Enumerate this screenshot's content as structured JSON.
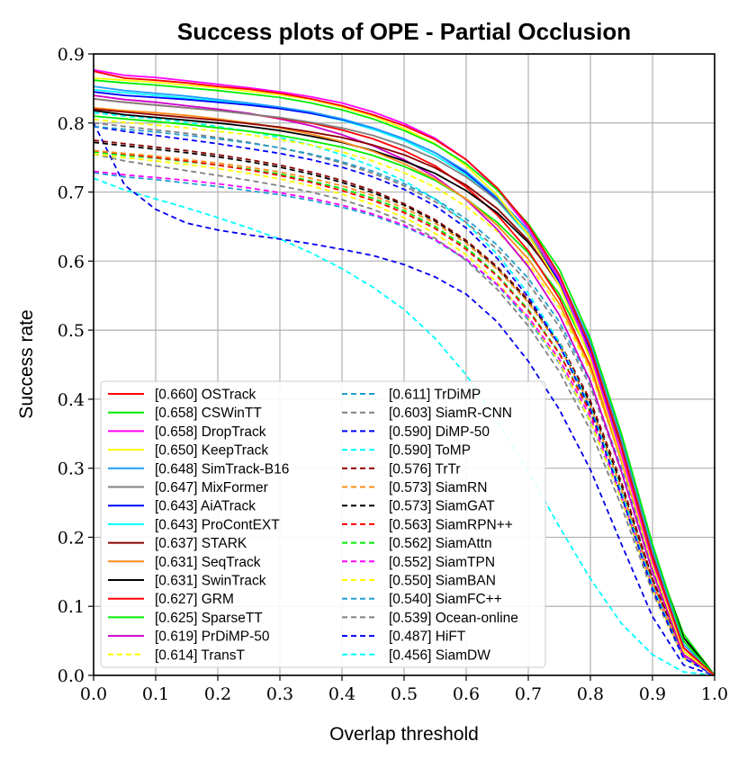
{
  "chart_data": {
    "type": "line",
    "title": "Success plots of OPE - Partial Occlusion",
    "xlabel": "Overlap threshold",
    "ylabel": "Success rate",
    "xlim": [
      0.0,
      1.0
    ],
    "ylim": [
      0.0,
      0.9
    ],
    "xticks": [
      "0.0",
      "0.1",
      "0.2",
      "0.3",
      "0.4",
      "0.5",
      "0.6",
      "0.7",
      "0.8",
      "0.9",
      "1.0"
    ],
    "yticks": [
      "0.0",
      "0.1",
      "0.2",
      "0.3",
      "0.4",
      "0.5",
      "0.6",
      "0.7",
      "0.8",
      "0.9"
    ],
    "grid": true,
    "legend_position": "lower-left",
    "x": [
      0.0,
      0.05,
      0.1,
      0.15,
      0.2,
      0.25,
      0.3,
      0.35,
      0.4,
      0.45,
      0.5,
      0.55,
      0.6,
      0.65,
      0.7,
      0.75,
      0.8,
      0.85,
      0.9,
      0.95,
      1.0
    ],
    "series": [
      {
        "name": "[0.660] OSTrack",
        "color": "#ff0000",
        "dash": "solid",
        "values": [
          0.875,
          0.865,
          0.862,
          0.858,
          0.853,
          0.849,
          0.843,
          0.835,
          0.825,
          0.812,
          0.796,
          0.776,
          0.747,
          0.706,
          0.652,
          0.58,
          0.475,
          0.33,
          0.17,
          0.04,
          0.0
        ]
      },
      {
        "name": "[0.658] CSWinTT",
        "color": "#00ee00",
        "dash": "solid",
        "values": [
          0.862,
          0.858,
          0.855,
          0.851,
          0.847,
          0.842,
          0.837,
          0.829,
          0.819,
          0.806,
          0.789,
          0.769,
          0.741,
          0.703,
          0.654,
          0.588,
          0.488,
          0.35,
          0.19,
          0.05,
          0.0
        ]
      },
      {
        "name": "[0.658] DropTrack",
        "color": "#ff00ff",
        "dash": "solid",
        "values": [
          0.877,
          0.869,
          0.866,
          0.861,
          0.856,
          0.851,
          0.845,
          0.838,
          0.829,
          0.816,
          0.799,
          0.778,
          0.747,
          0.704,
          0.648,
          0.574,
          0.465,
          0.32,
          0.165,
          0.04,
          0.0
        ]
      },
      {
        "name": "[0.650] KeepTrack",
        "color": "#ffff00",
        "dash": "solid",
        "values": [
          0.865,
          0.862,
          0.859,
          0.855,
          0.851,
          0.846,
          0.841,
          0.834,
          0.823,
          0.81,
          0.792,
          0.77,
          0.738,
          0.695,
          0.638,
          0.565,
          0.457,
          0.315,
          0.16,
          0.035,
          0.0
        ]
      },
      {
        "name": "[0.648] SimTrack-B16",
        "color": "#1f9fff",
        "dash": "solid",
        "values": [
          0.853,
          0.847,
          0.843,
          0.839,
          0.834,
          0.829,
          0.823,
          0.816,
          0.806,
          0.793,
          0.777,
          0.757,
          0.73,
          0.692,
          0.645,
          0.578,
          0.483,
          0.345,
          0.185,
          0.045,
          0.0
        ]
      },
      {
        "name": "[0.647] MixFormer",
        "color": "#808080",
        "dash": "solid",
        "values": [
          0.835,
          0.83,
          0.826,
          0.822,
          0.818,
          0.813,
          0.808,
          0.801,
          0.793,
          0.782,
          0.767,
          0.748,
          0.722,
          0.688,
          0.64,
          0.575,
          0.478,
          0.34,
          0.18,
          0.045,
          0.0
        ]
      },
      {
        "name": "[0.643] AiATrack",
        "color": "#0000ff",
        "dash": "solid",
        "values": [
          0.845,
          0.84,
          0.837,
          0.834,
          0.83,
          0.826,
          0.821,
          0.814,
          0.805,
          0.793,
          0.777,
          0.757,
          0.728,
          0.69,
          0.64,
          0.57,
          0.47,
          0.33,
          0.17,
          0.04,
          0.0
        ]
      },
      {
        "name": "[0.643] ProContEXT",
        "color": "#00ffff",
        "dash": "solid",
        "values": [
          0.848,
          0.844,
          0.84,
          0.836,
          0.832,
          0.827,
          0.821,
          0.814,
          0.804,
          0.791,
          0.775,
          0.753,
          0.725,
          0.687,
          0.637,
          0.568,
          0.468,
          0.33,
          0.17,
          0.04,
          0.0
        ]
      },
      {
        "name": "[0.637] STARK",
        "color": "#8b0000",
        "dash": "solid",
        "values": [
          0.82,
          0.816,
          0.812,
          0.808,
          0.804,
          0.799,
          0.794,
          0.787,
          0.779,
          0.768,
          0.754,
          0.735,
          0.71,
          0.676,
          0.63,
          0.565,
          0.47,
          0.335,
          0.175,
          0.04,
          0.0
        ]
      },
      {
        "name": "[0.631] SeqTrack",
        "color": "#ff8c1a",
        "dash": "solid",
        "values": [
          0.822,
          0.818,
          0.815,
          0.811,
          0.806,
          0.8,
          0.793,
          0.784,
          0.773,
          0.759,
          0.741,
          0.719,
          0.69,
          0.652,
          0.603,
          0.538,
          0.445,
          0.31,
          0.16,
          0.035,
          0.0
        ]
      },
      {
        "name": "[0.631] SwinTrack",
        "color": "#000000",
        "dash": "solid",
        "values": [
          0.818,
          0.812,
          0.808,
          0.804,
          0.8,
          0.795,
          0.789,
          0.781,
          0.772,
          0.76,
          0.745,
          0.727,
          0.702,
          0.67,
          0.627,
          0.57,
          0.48,
          0.345,
          0.185,
          0.055,
          0.0
        ]
      },
      {
        "name": "[0.627] GRM",
        "color": "#ff0000",
        "dash": "solid",
        "values": [
          0.835,
          0.83,
          0.826,
          0.822,
          0.818,
          0.813,
          0.807,
          0.8,
          0.79,
          0.777,
          0.76,
          0.738,
          0.707,
          0.667,
          0.615,
          0.546,
          0.448,
          0.31,
          0.16,
          0.035,
          0.0
        ]
      },
      {
        "name": "[0.625] SparseTT",
        "color": "#00ee00",
        "dash": "solid",
        "values": [
          0.81,
          0.806,
          0.802,
          0.798,
          0.793,
          0.788,
          0.782,
          0.774,
          0.765,
          0.753,
          0.737,
          0.717,
          0.69,
          0.656,
          0.612,
          0.552,
          0.462,
          0.33,
          0.18,
          0.06,
          0.0
        ]
      },
      {
        "name": "[0.619] PrDiMP-50",
        "color": "#cc00cc",
        "dash": "solid",
        "values": [
          0.84,
          0.834,
          0.83,
          0.825,
          0.82,
          0.814,
          0.806,
          0.796,
          0.783,
          0.767,
          0.747,
          0.722,
          0.689,
          0.646,
          0.592,
          0.522,
          0.426,
          0.295,
          0.15,
          0.03,
          0.0
        ]
      },
      {
        "name": "[0.614] TransT",
        "color": "#ffff00",
        "dash": "dashed",
        "values": [
          0.805,
          0.801,
          0.797,
          0.793,
          0.788,
          0.783,
          0.776,
          0.768,
          0.758,
          0.745,
          0.728,
          0.707,
          0.679,
          0.643,
          0.596,
          0.532,
          0.44,
          0.31,
          0.16,
          0.04,
          0.0
        ]
      },
      {
        "name": "[0.611] TrDiMP",
        "color": "#1f9fcf",
        "dash": "dashed",
        "values": [
          0.795,
          0.791,
          0.787,
          0.782,
          0.777,
          0.771,
          0.764,
          0.755,
          0.744,
          0.73,
          0.712,
          0.69,
          0.661,
          0.623,
          0.575,
          0.512,
          0.424,
          0.3,
          0.155,
          0.035,
          0.0
        ]
      },
      {
        "name": "[0.603] SiamR-CNN",
        "color": "#808080",
        "dash": "dashed",
        "values": [
          0.8,
          0.795,
          0.79,
          0.785,
          0.779,
          0.772,
          0.764,
          0.754,
          0.742,
          0.727,
          0.709,
          0.686,
          0.656,
          0.617,
          0.568,
          0.505,
          0.418,
          0.295,
          0.15,
          0.035,
          0.0
        ]
      },
      {
        "name": "[0.590] DiMP-50",
        "color": "#0000ff",
        "dash": "dashed",
        "values": [
          0.795,
          0.788,
          0.782,
          0.776,
          0.77,
          0.763,
          0.756,
          0.747,
          0.736,
          0.722,
          0.704,
          0.68,
          0.648,
          0.604,
          0.548,
          0.478,
          0.385,
          0.26,
          0.125,
          0.025,
          0.0
        ]
      },
      {
        "name": "[0.590] ToMP",
        "color": "#00ffff",
        "dash": "dashed",
        "values": [
          0.815,
          0.81,
          0.806,
          0.801,
          0.795,
          0.788,
          0.779,
          0.768,
          0.754,
          0.737,
          0.716,
          0.69,
          0.655,
          0.61,
          0.553,
          0.482,
          0.388,
          0.265,
          0.13,
          0.025,
          0.0
        ]
      },
      {
        "name": "[0.576] TrTr",
        "color": "#8b0000",
        "dash": "dashed",
        "values": [
          0.775,
          0.77,
          0.765,
          0.76,
          0.754,
          0.747,
          0.739,
          0.729,
          0.717,
          0.702,
          0.683,
          0.66,
          0.63,
          0.592,
          0.544,
          0.483,
          0.398,
          0.28,
          0.14,
          0.03,
          0.0
        ]
      },
      {
        "name": "[0.573] SiamRN",
        "color": "#ff8c1a",
        "dash": "dashed",
        "values": [
          0.76,
          0.756,
          0.752,
          0.747,
          0.742,
          0.736,
          0.729,
          0.72,
          0.709,
          0.695,
          0.677,
          0.655,
          0.626,
          0.588,
          0.54,
          0.477,
          0.39,
          0.27,
          0.135,
          0.03,
          0.0
        ]
      },
      {
        "name": "[0.573] SiamGAT",
        "color": "#000000",
        "dash": "dashed",
        "values": [
          0.772,
          0.767,
          0.762,
          0.757,
          0.751,
          0.744,
          0.736,
          0.726,
          0.714,
          0.699,
          0.681,
          0.658,
          0.628,
          0.59,
          0.542,
          0.48,
          0.394,
          0.275,
          0.14,
          0.03,
          0.0
        ]
      },
      {
        "name": "[0.563] SiamRPN++",
        "color": "#ff0000",
        "dash": "dashed",
        "values": [
          0.76,
          0.755,
          0.75,
          0.745,
          0.739,
          0.732,
          0.724,
          0.714,
          0.702,
          0.688,
          0.67,
          0.647,
          0.617,
          0.578,
          0.528,
          0.466,
          0.38,
          0.265,
          0.135,
          0.03,
          0.0
        ]
      },
      {
        "name": "[0.562] SiamAttn",
        "color": "#00ee00",
        "dash": "dashed",
        "values": [
          0.758,
          0.753,
          0.749,
          0.744,
          0.739,
          0.733,
          0.726,
          0.716,
          0.705,
          0.691,
          0.673,
          0.65,
          0.62,
          0.58,
          0.53,
          0.467,
          0.382,
          0.265,
          0.135,
          0.03,
          0.0
        ]
      },
      {
        "name": "[0.552] SiamTPN",
        "color": "#ff00ff",
        "dash": "dashed",
        "values": [
          0.73,
          0.725,
          0.721,
          0.717,
          0.712,
          0.706,
          0.699,
          0.691,
          0.681,
          0.668,
          0.652,
          0.631,
          0.603,
          0.566,
          0.519,
          0.458,
          0.374,
          0.26,
          0.13,
          0.028,
          0.0
        ]
      },
      {
        "name": "[0.550] SiamBAN",
        "color": "#ffff00",
        "dash": "dashed",
        "values": [
          0.755,
          0.75,
          0.745,
          0.74,
          0.734,
          0.727,
          0.719,
          0.709,
          0.697,
          0.682,
          0.663,
          0.64,
          0.609,
          0.569,
          0.518,
          0.454,
          0.368,
          0.255,
          0.125,
          0.025,
          0.0
        ]
      },
      {
        "name": "[0.540] SiamFC++",
        "color": "#1f9fcf",
        "dash": "dashed",
        "values": [
          0.728,
          0.722,
          0.718,
          0.713,
          0.708,
          0.702,
          0.696,
          0.688,
          0.678,
          0.666,
          0.65,
          0.63,
          0.602,
          0.565,
          0.515,
          0.452,
          0.367,
          0.255,
          0.125,
          0.025,
          0.0
        ]
      },
      {
        "name": "[0.539] Ocean-online",
        "color": "#808080",
        "dash": "dashed",
        "values": [
          0.755,
          0.745,
          0.738,
          0.731,
          0.724,
          0.717,
          0.709,
          0.7,
          0.689,
          0.675,
          0.657,
          0.633,
          0.601,
          0.559,
          0.506,
          0.44,
          0.355,
          0.245,
          0.12,
          0.025,
          0.0
        ]
      },
      {
        "name": "[0.487] HiFT",
        "color": "#0000ee",
        "dash": "dashed",
        "values": [
          0.8,
          0.71,
          0.675,
          0.655,
          0.645,
          0.638,
          0.632,
          0.625,
          0.617,
          0.608,
          0.595,
          0.577,
          0.552,
          0.512,
          0.455,
          0.385,
          0.298,
          0.19,
          0.085,
          0.015,
          0.0
        ]
      },
      {
        "name": "[0.456] SiamDW",
        "color": "#00ffff",
        "dash": "dashed",
        "values": [
          0.72,
          0.703,
          0.69,
          0.677,
          0.663,
          0.648,
          0.632,
          0.612,
          0.589,
          0.562,
          0.53,
          0.488,
          0.435,
          0.368,
          0.295,
          0.215,
          0.14,
          0.075,
          0.03,
          0.005,
          0.0
        ]
      }
    ]
  }
}
